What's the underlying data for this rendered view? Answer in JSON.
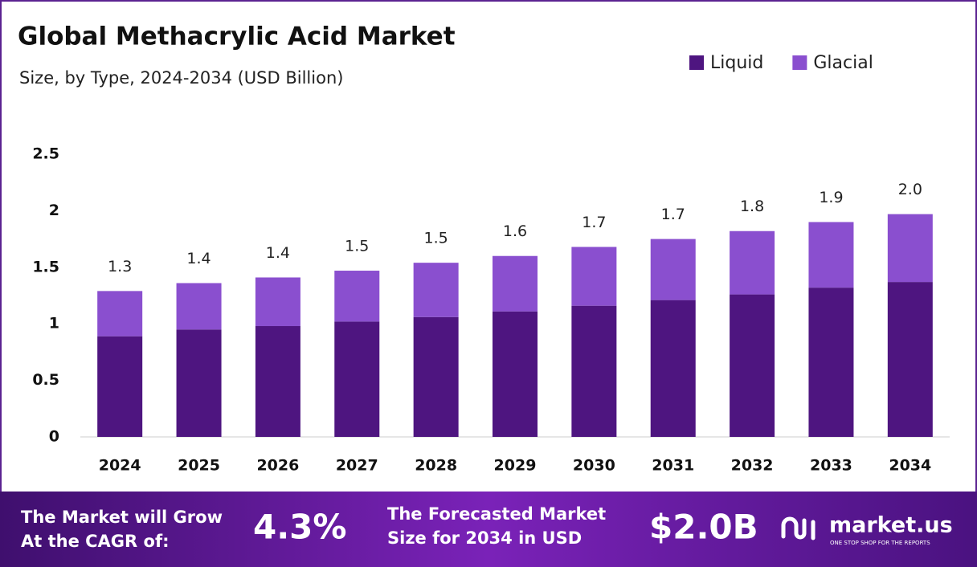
{
  "chart_data": {
    "type": "stacked_bar",
    "title": "Global Methacrylic Acid Market",
    "subtitle": "Size, by Type, 2024-2034 (USD Billion)",
    "categories": [
      "2024",
      "2025",
      "2026",
      "2027",
      "2028",
      "2029",
      "2030",
      "2031",
      "2032",
      "2033",
      "2034"
    ],
    "series": [
      {
        "name": "Liquid",
        "color": "#4e1580",
        "values": [
          0.89,
          0.95,
          0.98,
          1.02,
          1.06,
          1.11,
          1.16,
          1.21,
          1.26,
          1.32,
          1.37
        ]
      },
      {
        "name": "Glacial",
        "color": "#8a4fcf",
        "values": [
          0.4,
          0.41,
          0.43,
          0.45,
          0.48,
          0.49,
          0.52,
          0.54,
          0.56,
          0.58,
          0.6
        ]
      }
    ],
    "total_labels": [
      "1.3",
      "1.4",
      "1.4",
      "1.5",
      "1.5",
      "1.6",
      "1.7",
      "1.7",
      "1.8",
      "1.9",
      "2.0"
    ],
    "ylim": [
      0,
      2.5
    ],
    "yticks": [
      0,
      0.5,
      1,
      1.5,
      2,
      2.5
    ],
    "grid": false,
    "legend": "top-right"
  },
  "footer": {
    "cagr_text": [
      "The Market will Grow",
      "At the CAGR of:"
    ],
    "cagr_value": "4.3%",
    "forecast_text": [
      "The Forecasted Market",
      "Size for 2034 in USD"
    ],
    "forecast_value": "$2.0B",
    "brand": "market.us",
    "tagline": "ONE STOP SHOP FOR THE REPORTS"
  }
}
